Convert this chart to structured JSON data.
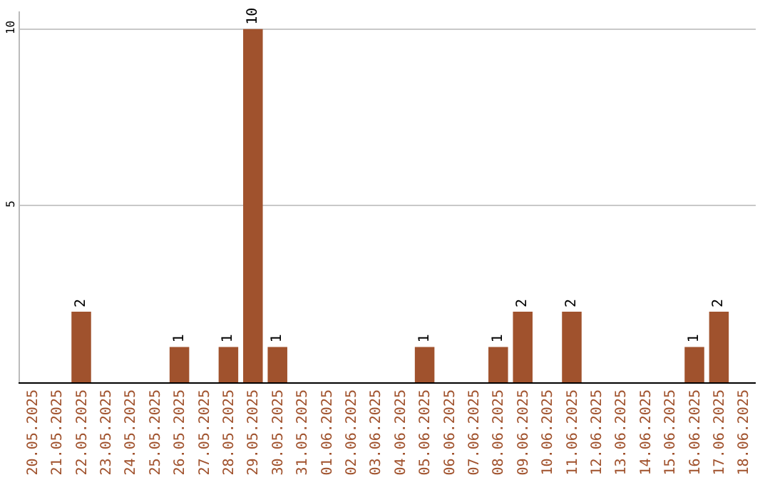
{
  "chart_data": {
    "type": "bar",
    "categories": [
      "20.05.2025",
      "21.05.2025",
      "22.05.2025",
      "23.05.2025",
      "24.05.2025",
      "25.05.2025",
      "26.05.2025",
      "27.05.2025",
      "28.05.2025",
      "29.05.2025",
      "30.05.2025",
      "31.05.2025",
      "01.06.2025",
      "02.06.2025",
      "03.06.2025",
      "04.06.2025",
      "05.06.2025",
      "06.06.2025",
      "07.06.2025",
      "08.06.2025",
      "09.06.2025",
      "10.06.2025",
      "11.06.2025",
      "12.06.2025",
      "13.06.2025",
      "14.06.2025",
      "15.06.2025",
      "16.06.2025",
      "17.06.2025",
      "18.06.2025"
    ],
    "values": [
      0,
      0,
      2,
      0,
      0,
      0,
      1,
      0,
      1,
      10,
      1,
      0,
      0,
      0,
      0,
      0,
      1,
      0,
      0,
      1,
      2,
      0,
      2,
      0,
      0,
      0,
      0,
      1,
      2,
      0
    ],
    "value_labels": [
      null,
      null,
      "2",
      null,
      null,
      null,
      "1",
      null,
      "1",
      "10",
      "1",
      null,
      null,
      null,
      null,
      null,
      "1",
      null,
      null,
      "1",
      "2",
      null,
      "2",
      null,
      null,
      null,
      null,
      "1",
      "2",
      null
    ],
    "color": "#a0522d",
    "ylim": [
      0,
      10.5
    ],
    "yticks": [
      5,
      10
    ],
    "grid": "y"
  }
}
